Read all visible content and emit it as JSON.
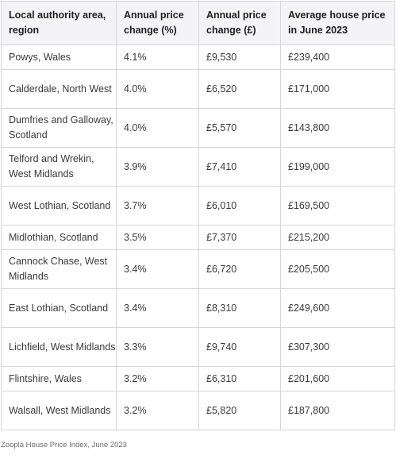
{
  "table": {
    "headers": [
      "Local authority area, region",
      "Annual price change (%)",
      "Annual price change (£)",
      "Average house price in June 2023"
    ],
    "rows": [
      [
        "Powys, Wales",
        "4.1%",
        "£9,530",
        "£239,400"
      ],
      [
        "Calderdale, North West",
        "4.0%",
        "£6,520",
        "£171,000"
      ],
      [
        "Dumfries and Galloway, Scotland",
        "4.0%",
        "£5,570",
        "£143,800"
      ],
      [
        "Telford and Wrekin, West Midlands",
        "3.9%",
        "£7,410",
        "£199,000"
      ],
      [
        "West Lothian, Scotland",
        "3.7%",
        "£6,010",
        "£169,500"
      ],
      [
        "Midlothian, Scotland",
        "3.5%",
        "£7,370",
        "£215,200"
      ],
      [
        "Cannock Chase, West Midlands",
        "3.4%",
        "£6,720",
        "£205,500"
      ],
      [
        "East Lothian, Scotland",
        "3.4%",
        "£8,310",
        "£249,600"
      ],
      [
        "Lichfield, West Midlands",
        "3.3%",
        "£9,740",
        "£307,300"
      ],
      [
        "Flintshire, Wales",
        "3.2%",
        "£6,310",
        "£201,600"
      ],
      [
        "Walsall, West Midlands",
        "3.2%",
        "£5,820",
        "£187,800"
      ]
    ]
  },
  "source": "Zoopla House Price Index, June 2023"
}
